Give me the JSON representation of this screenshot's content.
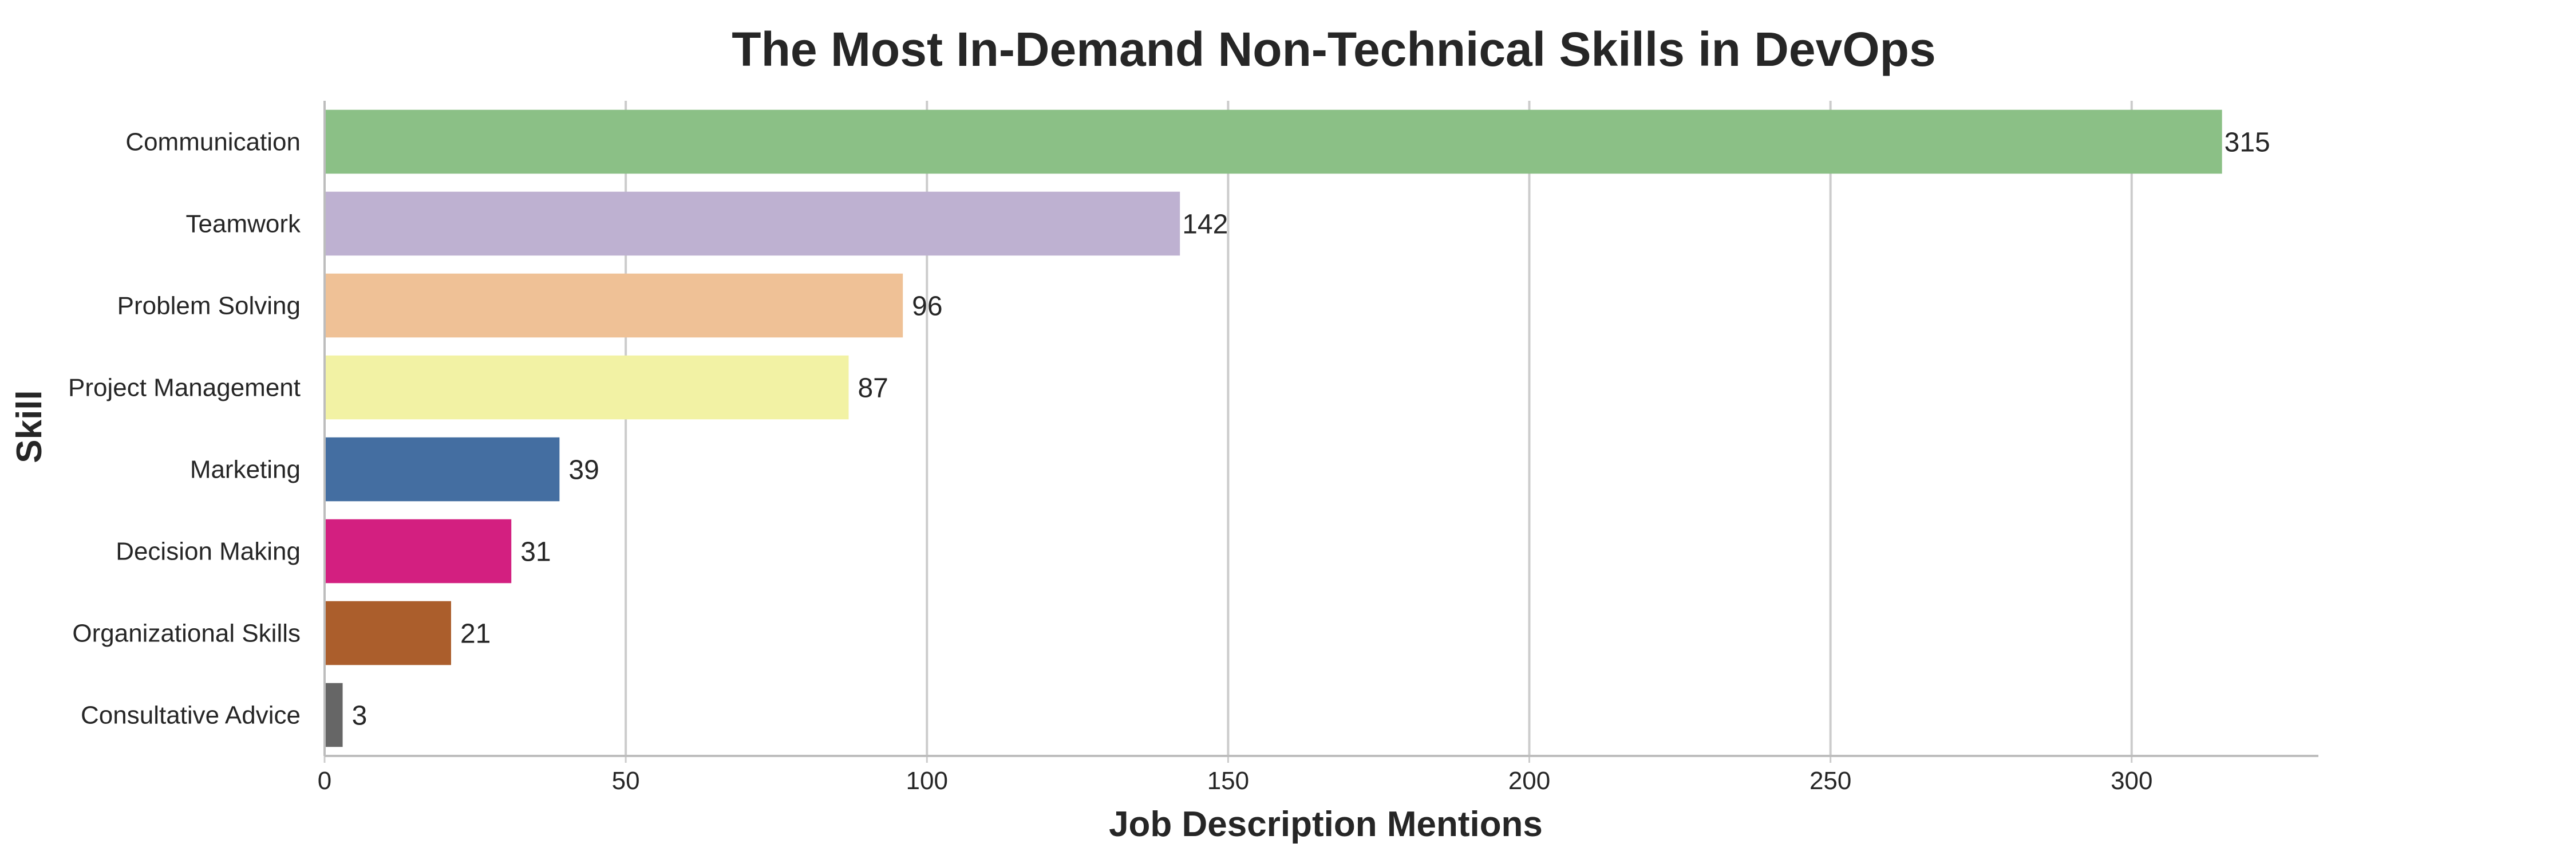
{
  "chart_data": {
    "type": "bar",
    "orientation": "horizontal",
    "title": "The Most In-Demand Non-Technical Skills in DevOps",
    "xlabel": "Job Description Mentions",
    "ylabel": "Skill",
    "categories": [
      "Communication",
      "Teamwork",
      "Problem Solving",
      "Project Management",
      "Marketing",
      "Decision Making",
      "Organizational Skills",
      "Consultative Advice"
    ],
    "values": [
      315,
      142,
      96,
      87,
      39,
      31,
      21,
      3
    ],
    "colors": [
      "#8bc086",
      "#beb1d1",
      "#efc196",
      "#f2f2a4",
      "#446ea1",
      "#d31f80",
      "#ab5e2c",
      "#666666"
    ],
    "xlim": [
      0,
      331
    ],
    "xticks": [
      0,
      50,
      100,
      150,
      200,
      250,
      300
    ],
    "grid": "x",
    "grid_color": "#cccccc",
    "legend": "none"
  }
}
